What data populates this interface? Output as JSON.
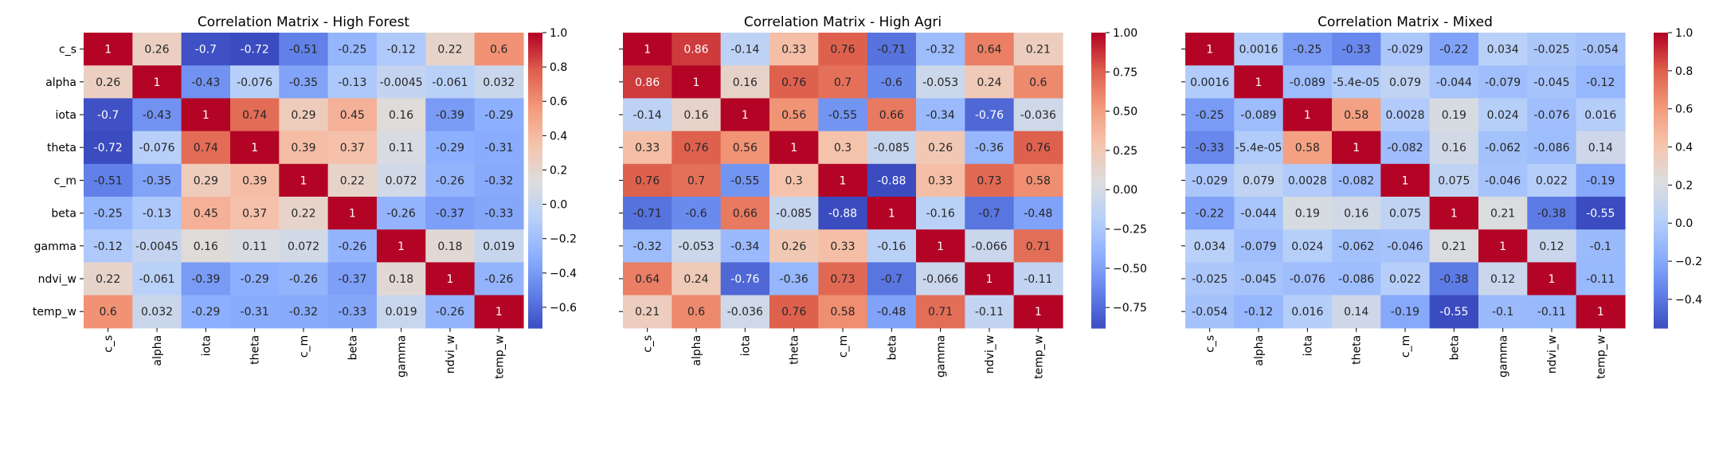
{
  "chart_data": [
    {
      "type": "heatmap",
      "title": "Correlation Matrix - High Forest",
      "labels": [
        "c_s",
        "alpha",
        "iota",
        "theta",
        "c_m",
        "beta",
        "gamma",
        "ndvi_w",
        "temp_w"
      ],
      "matrix": [
        [
          1,
          0.26,
          -0.7,
          -0.72,
          -0.51,
          -0.25,
          -0.12,
          0.22,
          0.6
        ],
        [
          0.26,
          1,
          -0.43,
          -0.076,
          -0.35,
          -0.13,
          -0.0045,
          -0.061,
          0.032
        ],
        [
          -0.7,
          -0.43,
          1,
          0.74,
          0.29,
          0.45,
          0.16,
          -0.39,
          -0.29
        ],
        [
          -0.72,
          -0.076,
          0.74,
          1,
          0.39,
          0.37,
          0.11,
          -0.29,
          -0.31
        ],
        [
          -0.51,
          -0.35,
          0.29,
          0.39,
          1,
          0.22,
          0.072,
          -0.26,
          -0.32
        ],
        [
          -0.25,
          -0.13,
          0.45,
          0.37,
          0.22,
          1,
          -0.26,
          -0.37,
          -0.33
        ],
        [
          -0.12,
          -0.0045,
          0.16,
          0.11,
          0.072,
          -0.26,
          1,
          0.18,
          0.019
        ],
        [
          0.22,
          -0.061,
          -0.39,
          -0.29,
          -0.26,
          -0.37,
          0.18,
          1,
          -0.26
        ],
        [
          0.6,
          0.032,
          -0.29,
          -0.31,
          -0.32,
          -0.33,
          0.019,
          -0.26,
          1
        ]
      ],
      "cell_labels": [
        [
          "1",
          "0.26",
          "-0.7",
          "-0.72",
          "-0.51",
          "-0.25",
          "-0.12",
          "0.22",
          "0.6"
        ],
        [
          "0.26",
          "1",
          "-0.43",
          "-0.076",
          "-0.35",
          "-0.13",
          "-0.0045",
          "-0.061",
          "0.032"
        ],
        [
          "-0.7",
          "-0.43",
          "1",
          "0.74",
          "0.29",
          "0.45",
          "0.16",
          "-0.39",
          "-0.29"
        ],
        [
          "-0.72",
          "-0.076",
          "0.74",
          "1",
          "0.39",
          "0.37",
          "0.11",
          "-0.29",
          "-0.31"
        ],
        [
          "-0.51",
          "-0.35",
          "0.29",
          "0.39",
          "1",
          "0.22",
          "0.072",
          "-0.26",
          "-0.32"
        ],
        [
          "-0.25",
          "-0.13",
          "0.45",
          "0.37",
          "0.22",
          "1",
          "-0.26",
          "-0.37",
          "-0.33"
        ],
        [
          "-0.12",
          "-0.0045",
          "0.16",
          "0.11",
          "0.072",
          "-0.26",
          "1",
          "0.18",
          "0.019"
        ],
        [
          "0.22",
          "-0.061",
          "-0.39",
          "-0.29",
          "-0.26",
          "-0.37",
          "0.18",
          "1",
          "-0.26"
        ],
        [
          "0.6",
          "0.032",
          "-0.29",
          "-0.31",
          "-0.32",
          "-0.33",
          "0.019",
          "-0.26",
          "1"
        ]
      ],
      "vmin": -0.72,
      "vmax": 1,
      "colorbar_ticks": [
        1.0,
        0.8,
        0.6,
        0.4,
        0.2,
        0.0,
        -0.2,
        -0.4,
        -0.6
      ],
      "colorbar_tick_labels": [
        "1.0",
        "0.8",
        "0.6",
        "0.4",
        "0.2",
        "0.0",
        "−0.2",
        "−0.4",
        "−0.6"
      ],
      "colormap": "coolwarm"
    },
    {
      "type": "heatmap",
      "title": "Correlation Matrix - High Agri",
      "labels": [
        "c_s",
        "alpha",
        "iota",
        "theta",
        "c_m",
        "beta",
        "gamma",
        "ndvi_w",
        "temp_w"
      ],
      "matrix": [
        [
          1,
          0.86,
          -0.14,
          0.33,
          0.76,
          -0.71,
          -0.32,
          0.64,
          0.21
        ],
        [
          0.86,
          1,
          0.16,
          0.76,
          0.7,
          -0.6,
          -0.053,
          0.24,
          0.6
        ],
        [
          -0.14,
          0.16,
          1,
          0.56,
          -0.55,
          0.66,
          -0.34,
          -0.76,
          -0.036
        ],
        [
          0.33,
          0.76,
          0.56,
          1,
          0.3,
          -0.085,
          0.26,
          -0.36,
          0.76
        ],
        [
          0.76,
          0.7,
          -0.55,
          0.3,
          1,
          -0.88,
          0.33,
          0.73,
          0.58
        ],
        [
          -0.71,
          -0.6,
          0.66,
          -0.085,
          -0.88,
          1,
          -0.16,
          -0.7,
          -0.48
        ],
        [
          -0.32,
          -0.053,
          -0.34,
          0.26,
          0.33,
          -0.16,
          1,
          -0.066,
          0.71
        ],
        [
          0.64,
          0.24,
          -0.76,
          -0.36,
          0.73,
          -0.7,
          -0.066,
          1,
          -0.11
        ],
        [
          0.21,
          0.6,
          -0.036,
          0.76,
          0.58,
          -0.48,
          0.71,
          -0.11,
          1
        ]
      ],
      "cell_labels": [
        [
          "1",
          "0.86",
          "-0.14",
          "0.33",
          "0.76",
          "-0.71",
          "-0.32",
          "0.64",
          "0.21"
        ],
        [
          "0.86",
          "1",
          "0.16",
          "0.76",
          "0.7",
          "-0.6",
          "-0.053",
          "0.24",
          "0.6"
        ],
        [
          "-0.14",
          "0.16",
          "1",
          "0.56",
          "-0.55",
          "0.66",
          "-0.34",
          "-0.76",
          "-0.036"
        ],
        [
          "0.33",
          "0.76",
          "0.56",
          "1",
          "0.3",
          "-0.085",
          "0.26",
          "-0.36",
          "0.76"
        ],
        [
          "0.76",
          "0.7",
          "-0.55",
          "0.3",
          "1",
          "-0.88",
          "0.33",
          "0.73",
          "0.58"
        ],
        [
          "-0.71",
          "-0.6",
          "0.66",
          "-0.085",
          "-0.88",
          "1",
          "-0.16",
          "-0.7",
          "-0.48"
        ],
        [
          "-0.32",
          "-0.053",
          "-0.34",
          "0.26",
          "0.33",
          "-0.16",
          "1",
          "-0.066",
          "0.71"
        ],
        [
          "0.64",
          "0.24",
          "-0.76",
          "-0.36",
          "0.73",
          "-0.7",
          "-0.066",
          "1",
          "-0.11"
        ],
        [
          "0.21",
          "0.6",
          "-0.036",
          "0.76",
          "0.58",
          "-0.48",
          "0.71",
          "-0.11",
          "1"
        ]
      ],
      "vmin": -0.88,
      "vmax": 1,
      "colorbar_ticks": [
        1.0,
        0.75,
        0.5,
        0.25,
        0.0,
        -0.25,
        -0.5,
        -0.75
      ],
      "colorbar_tick_labels": [
        "1.00",
        "0.75",
        "0.50",
        "0.25",
        "0.00",
        "−0.25",
        "−0.50",
        "−0.75"
      ],
      "colormap": "coolwarm"
    },
    {
      "type": "heatmap",
      "title": "Correlation Matrix - Mixed",
      "labels": [
        "c_s",
        "alpha",
        "iota",
        "theta",
        "c_m",
        "beta",
        "gamma",
        "ndvi_w",
        "temp_w"
      ],
      "matrix": [
        [
          1,
          0.0016,
          -0.25,
          -0.33,
          -0.029,
          -0.22,
          0.034,
          -0.025,
          -0.054
        ],
        [
          0.0016,
          1,
          -0.089,
          -5.4e-05,
          0.079,
          -0.044,
          -0.079,
          -0.045,
          -0.12
        ],
        [
          -0.25,
          -0.089,
          1,
          0.58,
          0.0028,
          0.19,
          0.024,
          -0.076,
          0.016
        ],
        [
          -0.33,
          -5.4e-05,
          0.58,
          1,
          -0.082,
          0.16,
          -0.062,
          -0.086,
          0.14
        ],
        [
          -0.029,
          0.079,
          0.0028,
          -0.082,
          1,
          0.075,
          -0.046,
          0.022,
          -0.19
        ],
        [
          -0.22,
          -0.044,
          0.19,
          0.16,
          0.075,
          1,
          0.21,
          -0.38,
          -0.55
        ],
        [
          0.034,
          -0.079,
          0.024,
          -0.062,
          -0.046,
          0.21,
          1,
          0.12,
          -0.1
        ],
        [
          -0.025,
          -0.045,
          -0.076,
          -0.086,
          0.022,
          -0.38,
          0.12,
          1,
          -0.11
        ],
        [
          -0.054,
          -0.12,
          0.016,
          0.14,
          -0.19,
          -0.55,
          -0.1,
          -0.11,
          1
        ]
      ],
      "cell_labels": [
        [
          "1",
          "0.0016",
          "-0.25",
          "-0.33",
          "-0.029",
          "-0.22",
          "0.034",
          "-0.025",
          "-0.054"
        ],
        [
          "0.0016",
          "1",
          "-0.089",
          "-5.4e-05",
          "0.079",
          "-0.044",
          "-0.079",
          "-0.045",
          "-0.12"
        ],
        [
          "-0.25",
          "-0.089",
          "1",
          "0.58",
          "0.0028",
          "0.19",
          "0.024",
          "-0.076",
          "0.016"
        ],
        [
          "-0.33",
          "-5.4e-05",
          "0.58",
          "1",
          "-0.082",
          "0.16",
          "-0.062",
          "-0.086",
          "0.14"
        ],
        [
          "-0.029",
          "0.079",
          "0.0028",
          "-0.082",
          "1",
          "0.075",
          "-0.046",
          "0.022",
          "-0.19"
        ],
        [
          "-0.22",
          "-0.044",
          "0.19",
          "0.16",
          "0.075",
          "1",
          "0.21",
          "-0.38",
          "-0.55"
        ],
        [
          "0.034",
          "-0.079",
          "0.024",
          "-0.062",
          "-0.046",
          "0.21",
          "1",
          "0.12",
          "-0.1"
        ],
        [
          "-0.025",
          "-0.045",
          "-0.076",
          "-0.086",
          "0.022",
          "-0.38",
          "0.12",
          "1",
          "-0.11"
        ],
        [
          "-0.054",
          "-0.12",
          "0.016",
          "0.14",
          "-0.19",
          "-0.55",
          "-0.1",
          "-0.11",
          "1"
        ]
      ],
      "vmin": -0.55,
      "vmax": 1,
      "colorbar_ticks": [
        1.0,
        0.8,
        0.6,
        0.4,
        0.2,
        0.0,
        -0.2,
        -0.4
      ],
      "colorbar_tick_labels": [
        "1.0",
        "0.8",
        "0.6",
        "0.4",
        "0.2",
        "0.0",
        "−0.2",
        "−0.4"
      ],
      "colormap": "coolwarm"
    }
  ]
}
